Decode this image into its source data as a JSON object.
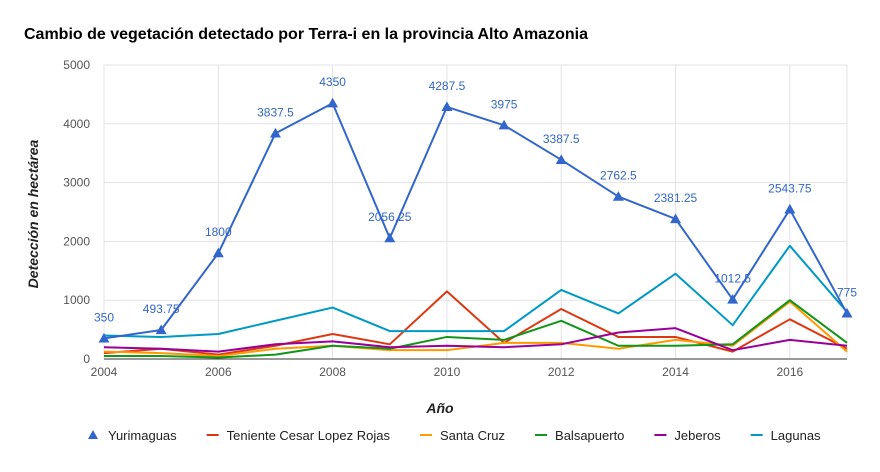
{
  "chart_data": {
    "type": "line",
    "title": "Cambio de vegetación detectado por Terra-i en la provincia Alto Amazonia",
    "xlabel": "Año",
    "ylabel": "Detección en hectárea",
    "x": [
      2004,
      2005,
      2006,
      2007,
      2008,
      2009,
      2010,
      2011,
      2012,
      2013,
      2014,
      2015,
      2016,
      2017
    ],
    "xlim": [
      2004,
      2017
    ],
    "ylim": [
      0,
      5000
    ],
    "x_ticks": [
      "2004",
      "2006",
      "2008",
      "2010",
      "2012",
      "2014",
      "2016"
    ],
    "y_ticks": [
      "0",
      "1000",
      "2000",
      "3000",
      "4000",
      "5000"
    ],
    "grid": true,
    "legend_position": "bottom",
    "series": [
      {
        "name": "Yurimaguas",
        "color": "#3366cc",
        "marker": "triangle",
        "values": [
          350,
          493.75,
          1800,
          3837.5,
          4350,
          2056.25,
          4287.5,
          3975,
          3387.5,
          2762.5,
          2381.25,
          1012.5,
          2543.75,
          775
        ],
        "labels": [
          "350",
          "493.75",
          "1800",
          "3837.5",
          "4350",
          "2056.25",
          "4287.5",
          "3975",
          "3387.5",
          "2762.5",
          "2381.25",
          "1012.5",
          "2543.75",
          "775"
        ]
      },
      {
        "name": "Teniente Cesar Lopez Rojas",
        "color": "#dc3912",
        "values": [
          100,
          175,
          75,
          225,
          425,
          250,
          1150,
          275,
          850,
          375,
          375,
          125,
          675,
          175
        ]
      },
      {
        "name": "Santa Cruz",
        "color": "#ff9900",
        "values": [
          125,
          100,
          50,
          175,
          225,
          150,
          150,
          275,
          275,
          175,
          325,
          225,
          975,
          125
        ]
      },
      {
        "name": "Balsapuerto",
        "color": "#109618",
        "values": [
          50,
          50,
          25,
          75,
          225,
          175,
          375,
          325,
          650,
          225,
          225,
          250,
          1000,
          275
        ]
      },
      {
        "name": "Jeberos",
        "color": "#990099",
        "values": [
          200,
          175,
          125,
          250,
          300,
          200,
          225,
          200,
          250,
          450,
          525,
          150,
          325,
          225
        ]
      },
      {
        "name": "Lagunas",
        "color": "#0099c6",
        "values": [
          400,
          375,
          425,
          650,
          875,
          475,
          475,
          475,
          1175,
          775,
          1450,
          575,
          1925,
          800
        ]
      }
    ]
  }
}
